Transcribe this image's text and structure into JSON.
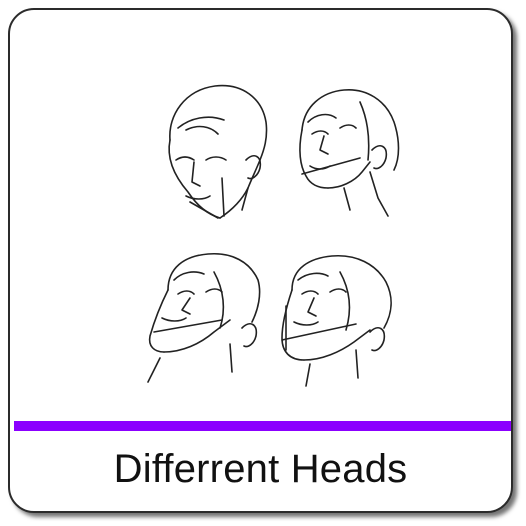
{
  "card": {
    "caption": "Differrent Heads",
    "accent_color": "#8b00ff",
    "border_color": "#2b2b2b"
  },
  "illustration": {
    "subject": "head-sketches",
    "count": 4
  }
}
